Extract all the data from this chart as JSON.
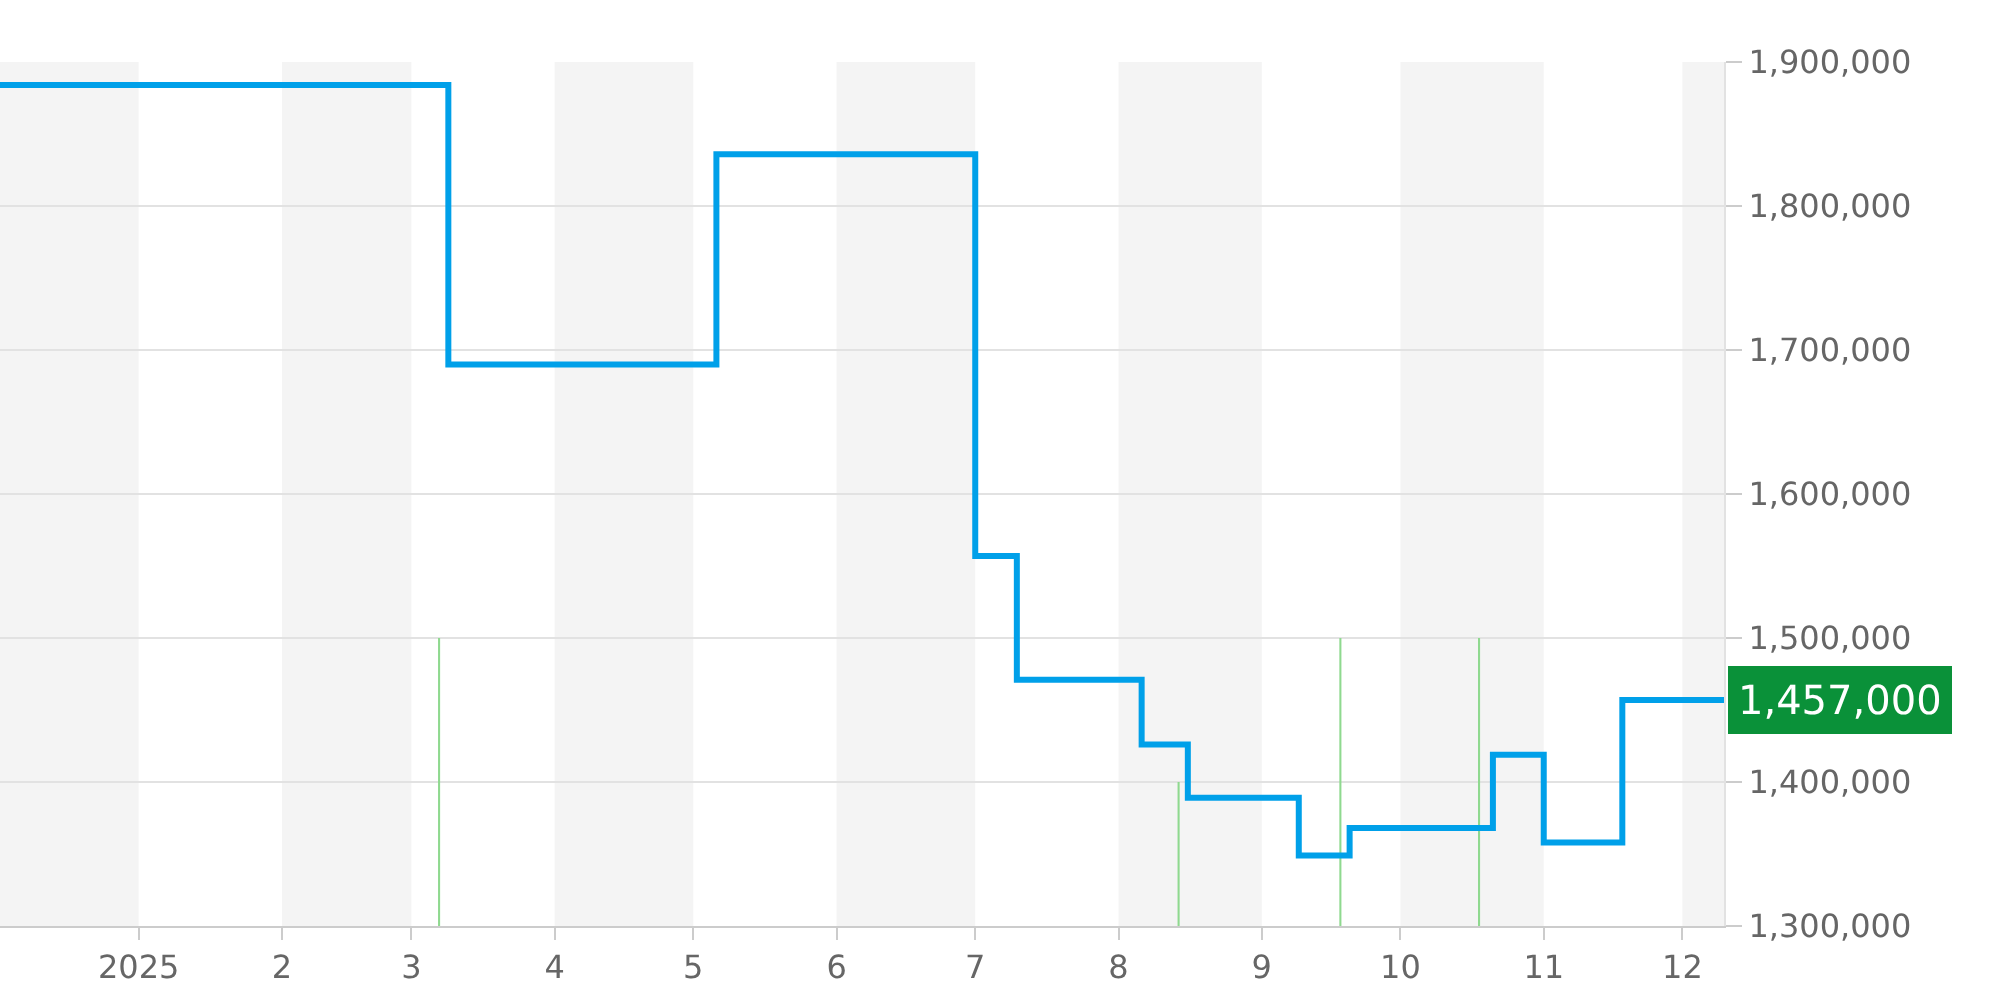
{
  "chart_data": {
    "type": "step",
    "xlim": [
      "2024-12-02",
      "2025-12-10"
    ],
    "xticks": [
      {
        "value": "2025-01-01",
        "label": "2025"
      },
      {
        "value": "2025-02-01",
        "label": "2"
      },
      {
        "value": "2025-03-01",
        "label": "3"
      },
      {
        "value": "2025-04-01",
        "label": "4"
      },
      {
        "value": "2025-05-01",
        "label": "5"
      },
      {
        "value": "2025-06-01",
        "label": "6"
      },
      {
        "value": "2025-07-01",
        "label": "7"
      },
      {
        "value": "2025-08-01",
        "label": "8"
      },
      {
        "value": "2025-09-01",
        "label": "9"
      },
      {
        "value": "2025-10-01",
        "label": "10"
      },
      {
        "value": "2025-11-01",
        "label": "11"
      },
      {
        "value": "2025-12-01",
        "label": "12"
      }
    ],
    "ylim": [
      1300000,
      1900000
    ],
    "yticks": [
      {
        "value": 1300000,
        "label": "1,300,000"
      },
      {
        "value": 1400000,
        "label": "1,400,000"
      },
      {
        "value": 1500000,
        "label": "1,500,000"
      },
      {
        "value": 1600000,
        "label": "1,600,000"
      },
      {
        "value": 1700000,
        "label": "1,700,000"
      },
      {
        "value": 1800000,
        "label": "1,800,000"
      },
      {
        "value": 1900000,
        "label": "1,900,000"
      }
    ],
    "grid": "y",
    "marker": "none",
    "line_style": "solid",
    "series": [
      {
        "color": "#00a0e9",
        "x": [
          "2024-12-02",
          "2025-03-09",
          "2025-05-06",
          "2025-07-01",
          "2025-07-10",
          "2025-08-06",
          "2025-08-16",
          "2025-09-09",
          "2025-09-20",
          "2025-10-21",
          "2025-11-01",
          "2025-11-18",
          "2025-12-10"
        ],
        "values": [
          1884000,
          1690000,
          1836000,
          1557000,
          1471000,
          1426000,
          1389000,
          1349000,
          1368000,
          1419000,
          1358000,
          1457000,
          1457000
        ]
      },
      {
        "type": "bar",
        "color": "#8fd98f",
        "x": [
          "2025-03-07",
          "2025-08-14",
          "2025-09-18",
          "2025-10-18"
        ],
        "values": [
          1500000,
          1400000,
          1500000,
          1500000
        ]
      }
    ],
    "bands": [
      {
        "axis": "x",
        "from": "2024-12-02",
        "to": "2025-01-01",
        "color": "#f4f4f4"
      },
      {
        "axis": "x",
        "from": "2025-02-01",
        "to": "2025-03-01",
        "color": "#f4f4f4"
      },
      {
        "axis": "x",
        "from": "2025-04-01",
        "to": "2025-05-01",
        "color": "#f4f4f4"
      },
      {
        "axis": "x",
        "from": "2025-06-01",
        "to": "2025-07-01",
        "color": "#f4f4f4"
      },
      {
        "axis": "x",
        "from": "2025-08-01",
        "to": "2025-09-01",
        "color": "#f4f4f4"
      },
      {
        "axis": "x",
        "from": "2025-10-01",
        "to": "2025-11-01",
        "color": "#f4f4f4"
      },
      {
        "axis": "x",
        "from": "2025-12-01",
        "to": "2025-12-10",
        "color": "#f4f4f4"
      }
    ],
    "annotations": [
      {
        "text": "1,457,000",
        "x": "2025-12-10",
        "y": 1457000
      }
    ]
  }
}
